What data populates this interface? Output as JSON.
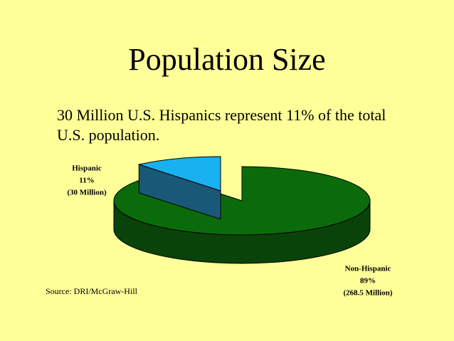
{
  "chart_data": {
    "type": "pie",
    "title": "Population Size",
    "subtitle": "30 Million U.S. Hispanics represent 11% of the total U.S. population.",
    "categories": [
      "Hispanic",
      "Non-Hispanic"
    ],
    "values": [
      11,
      89
    ],
    "value_labels": [
      "11%",
      "89%"
    ],
    "annotations": [
      "(30 Million)",
      "(268.5 Million)"
    ],
    "colors": [
      "#19b0f0",
      "#0b6b0b"
    ],
    "side_colors": [
      "#1a5878",
      "#0a430a"
    ],
    "source": "Source:  DRI/McGraw-Hill"
  }
}
